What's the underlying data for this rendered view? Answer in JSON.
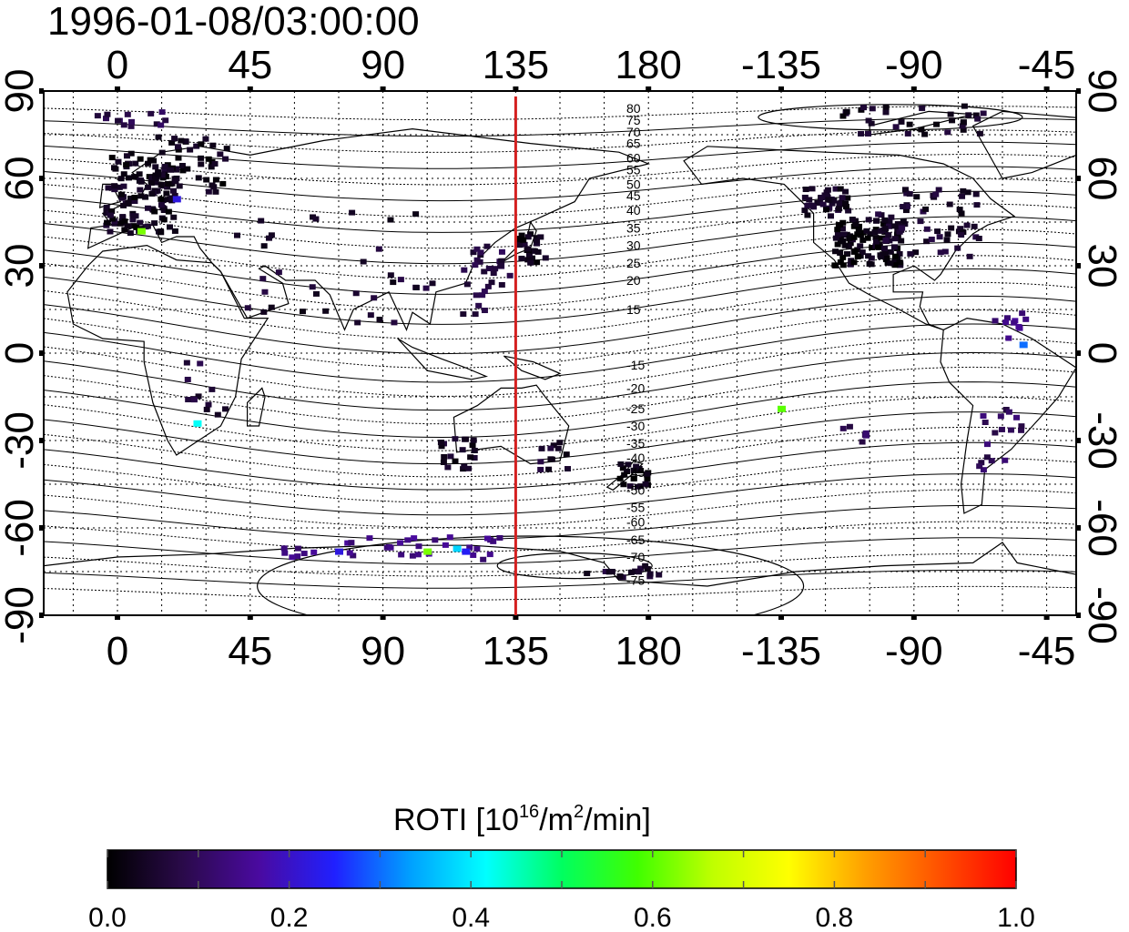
{
  "title": "1996-01-08/03:00:00",
  "map": {
    "lon_start": -25,
    "lon_end": 325,
    "lat_min": -90,
    "lat_max": 90,
    "lon_ticks": [
      {
        "value": 0,
        "label": "0"
      },
      {
        "value": 45,
        "label": "45"
      },
      {
        "value": 90,
        "label": "90"
      },
      {
        "value": 135,
        "label": "135"
      },
      {
        "value": 180,
        "label": "180"
      },
      {
        "value": 225,
        "label": "-135"
      },
      {
        "value": 270,
        "label": "-90"
      },
      {
        "value": 315,
        "label": "-45"
      }
    ],
    "lat_ticks": [
      {
        "value": 90,
        "label": "90"
      },
      {
        "value": 60,
        "label": "60"
      },
      {
        "value": 30,
        "label": "30"
      },
      {
        "value": 0,
        "label": "0"
      },
      {
        "value": -30,
        "label": "-30"
      },
      {
        "value": -60,
        "label": "-60"
      },
      {
        "value": -90,
        "label": "-90"
      }
    ],
    "right_lat_labels": [
      "90",
      "60",
      "30",
      "0",
      "-30",
      "-60",
      "-90"
    ],
    "meridian_line_lon": 135,
    "meridian_line_color": "#d42020",
    "grid": "dotted, every 15 degrees",
    "contour_labels": [
      {
        "label": "80",
        "lat": 84
      },
      {
        "label": "75",
        "lat": 80
      },
      {
        "label": "70",
        "lat": 76
      },
      {
        "label": "65",
        "lat": 72
      },
      {
        "label": "60",
        "lat": 67
      },
      {
        "label": "55",
        "lat": 63
      },
      {
        "label": "50",
        "lat": 58
      },
      {
        "label": "45",
        "lat": 54
      },
      {
        "label": "40",
        "lat": 49
      },
      {
        "label": "35",
        "lat": 43
      },
      {
        "label": "30",
        "lat": 37
      },
      {
        "label": "25",
        "lat": 31
      },
      {
        "label": "20",
        "lat": 25
      },
      {
        "label": "15",
        "lat": 15
      },
      {
        "label": "-15",
        "lat": -4
      },
      {
        "label": "-20",
        "lat": -12
      },
      {
        "label": "-25",
        "lat": -19
      },
      {
        "label": "-30",
        "lat": -25
      },
      {
        "label": "-35",
        "lat": -31
      },
      {
        "label": "-40",
        "lat": -36
      },
      {
        "label": "-45",
        "lat": -41
      },
      {
        "label": "-50",
        "lat": -47
      },
      {
        "label": "-55",
        "lat": -53
      },
      {
        "label": "-60",
        "lat": -58
      },
      {
        "label": "-65",
        "lat": -64
      },
      {
        "label": "-70",
        "lat": -70
      },
      {
        "label": "-75",
        "lat": -78
      }
    ],
    "observation_clusters": [
      {
        "lon": 8,
        "lat": 55,
        "spread_lon": 12,
        "spread_lat": 14,
        "count": 140,
        "value": 0.03
      },
      {
        "lon": 5,
        "lat": 80,
        "spread_lon": 12,
        "spread_lat": 3,
        "count": 14,
        "value": 0.08
      },
      {
        "lon": 25,
        "lat": 65,
        "spread_lon": 12,
        "spread_lat": 10,
        "count": 40,
        "value": 0.03
      },
      {
        "lon": 255,
        "lat": 38,
        "spread_lon": 12,
        "spread_lat": 8,
        "count": 110,
        "value": 0.02
      },
      {
        "lon": 240,
        "lat": 52,
        "spread_lon": 8,
        "spread_lat": 5,
        "count": 40,
        "value": 0.04
      },
      {
        "lon": 275,
        "lat": 45,
        "spread_lon": 18,
        "spread_lat": 12,
        "count": 60,
        "value": 0.05
      },
      {
        "lon": 270,
        "lat": 80,
        "spread_lon": 25,
        "spread_lat": 5,
        "count": 35,
        "value": 0.04
      },
      {
        "lon": 140,
        "lat": 36,
        "spread_lon": 5,
        "spread_lat": 5,
        "count": 25,
        "value": 0.03
      },
      {
        "lon": 125,
        "lat": 25,
        "spread_lon": 8,
        "spread_lat": 12,
        "count": 30,
        "value": 0.07
      },
      {
        "lon": 75,
        "lat": 30,
        "spread_lon": 35,
        "spread_lat": 20,
        "count": 35,
        "value": 0.05
      },
      {
        "lon": 115,
        "lat": -35,
        "spread_lon": 6,
        "spread_lat": 6,
        "count": 20,
        "value": 0.04
      },
      {
        "lon": 148,
        "lat": -35,
        "spread_lon": 6,
        "spread_lat": 5,
        "count": 12,
        "value": 0.05
      },
      {
        "lon": 175,
        "lat": -42,
        "spread_lon": 5,
        "spread_lat": 4,
        "count": 25,
        "value": 0.02
      },
      {
        "lon": 95,
        "lat": -67,
        "spread_lon": 40,
        "spread_lat": 4,
        "count": 35,
        "value": 0.14
      },
      {
        "lon": 170,
        "lat": -75,
        "spread_lon": 14,
        "spread_lat": 2,
        "count": 16,
        "value": 0.05
      },
      {
        "lon": 300,
        "lat": -30,
        "spread_lon": 8,
        "spread_lat": 12,
        "count": 18,
        "value": 0.1
      },
      {
        "lon": 300,
        "lat": 10,
        "spread_lon": 10,
        "spread_lat": 5,
        "count": 10,
        "value": 0.14
      },
      {
        "lon": 30,
        "lat": -10,
        "spread_lon": 8,
        "spread_lat": 12,
        "count": 12,
        "value": 0.06
      },
      {
        "lon": 250,
        "lat": -28,
        "spread_lon": 5,
        "spread_lat": 3,
        "count": 6,
        "value": 0.1
      }
    ],
    "highlight_points": [
      {
        "lon": 27,
        "lat": -24,
        "value": 0.42
      },
      {
        "lon": 8,
        "lat": 42,
        "value": 0.62
      },
      {
        "lon": 225,
        "lat": -19,
        "value": 0.6
      },
      {
        "lon": 105,
        "lat": -68,
        "value": 0.62
      },
      {
        "lon": 115,
        "lat": -67,
        "value": 0.38
      },
      {
        "lon": 118,
        "lat": -68,
        "value": 0.24
      },
      {
        "lon": 307,
        "lat": 3,
        "value": 0.3
      },
      {
        "lon": 20,
        "lat": 53,
        "value": 0.22
      },
      {
        "lon": 75,
        "lat": -68,
        "value": 0.22
      }
    ]
  },
  "colorbar": {
    "title_prefix": "ROTI  [10",
    "title_sup1": "16",
    "title_mid": "/m",
    "title_sup2": "2",
    "title_suffix": "/min]",
    "min": 0.0,
    "max": 1.0,
    "tick_labels": [
      "0.0",
      "0.2",
      "0.4",
      "0.6",
      "0.8",
      "1.0"
    ],
    "colors": [
      "#000000",
      "#2a0a4a",
      "#4a0aa0",
      "#2020ff",
      "#00a0ff",
      "#00ffff",
      "#00ff60",
      "#40ff00",
      "#c0ff00",
      "#ffff00",
      "#ffa000",
      "#ff5000",
      "#ff0000"
    ]
  }
}
